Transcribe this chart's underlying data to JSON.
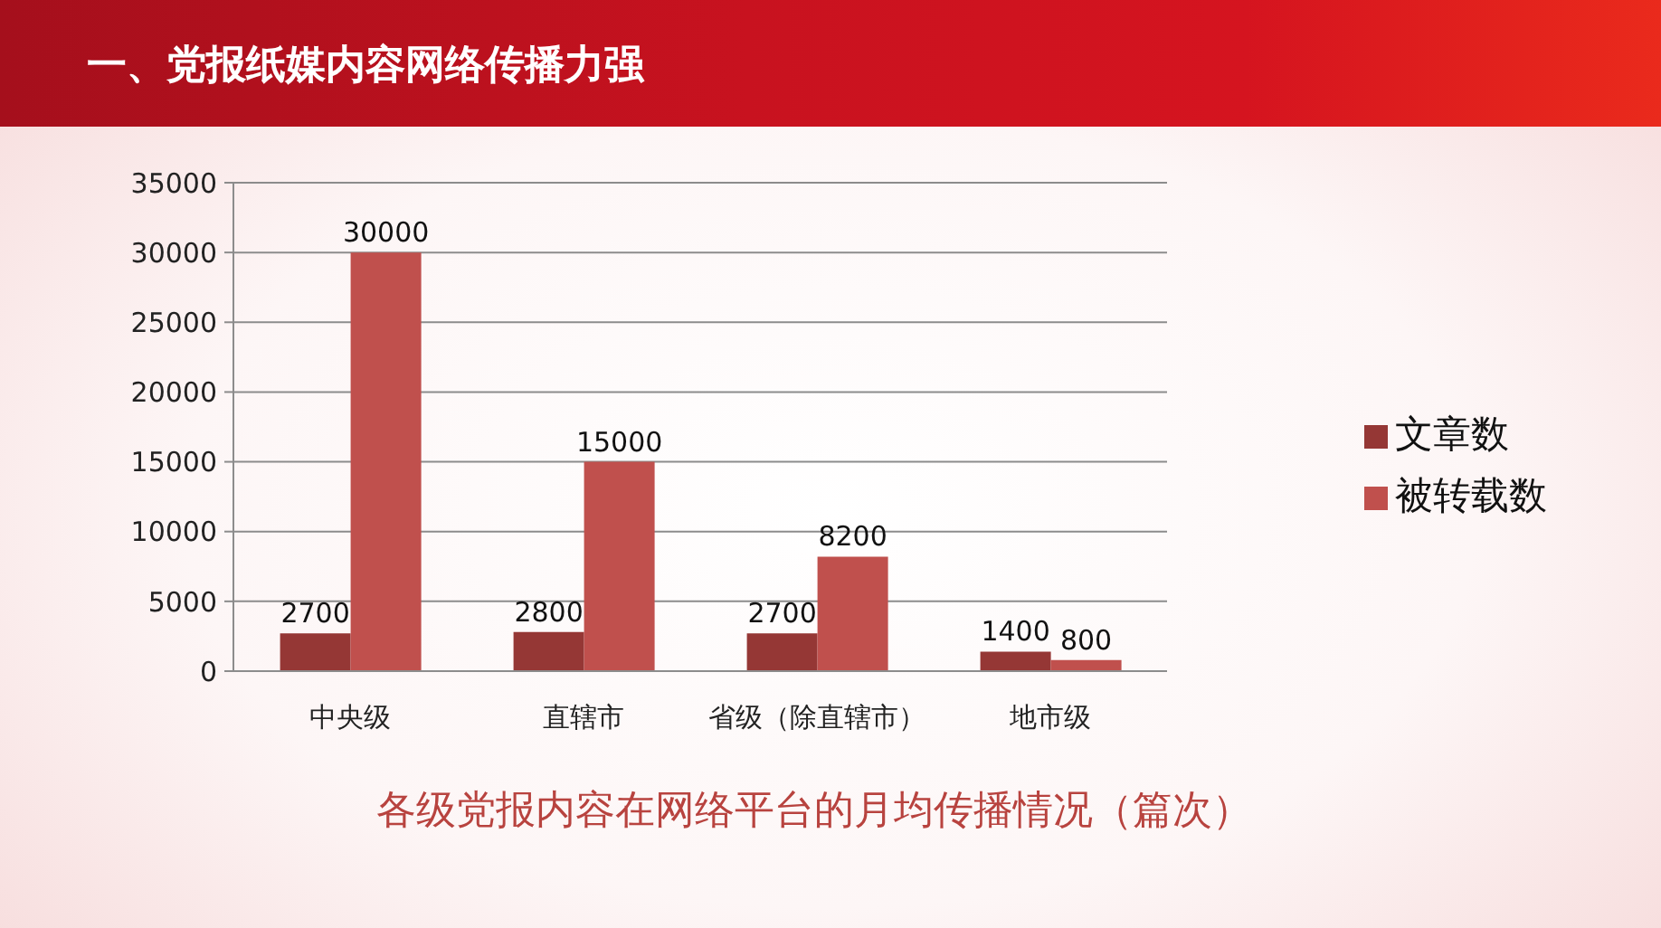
{
  "chart_data": {
    "type": "bar",
    "title": "一、党报纸媒内容网络传播力强",
    "categories": [
      "中央级",
      "直辖市",
      "省级（除直辖市）",
      "地市级"
    ],
    "series": [
      {
        "name": "文章数",
        "color": "#953735",
        "values": [
          2700,
          2800,
          2700,
          1400
        ]
      },
      {
        "name": "被转载数",
        "color": "#c0504d",
        "values": [
          30000,
          15000,
          8200,
          800
        ]
      }
    ],
    "ylim": [
      0,
      35000
    ],
    "yticks": [
      0,
      5000,
      10000,
      15000,
      20000,
      25000,
      30000,
      35000
    ],
    "grid": "y",
    "legend": "right",
    "data_labels": true,
    "annotations": [
      "各级党报内容在网络平台的月均传播情况（篇次）"
    ]
  }
}
